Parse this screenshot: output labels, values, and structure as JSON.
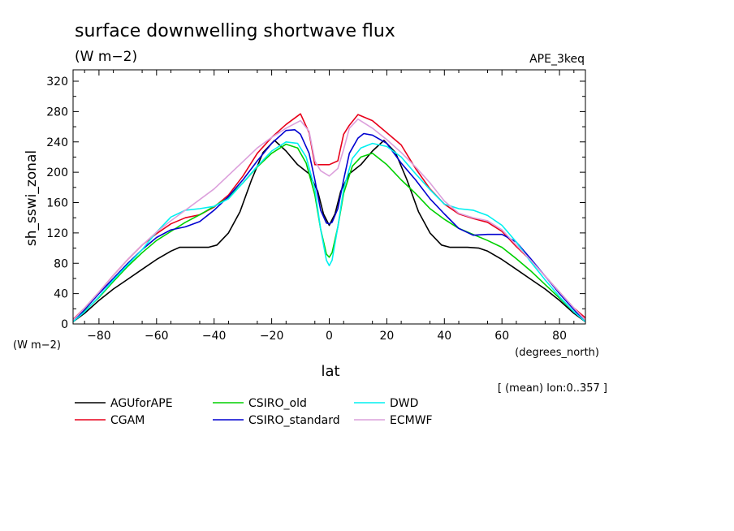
{
  "chart_data": {
    "type": "line",
    "title": "surface downwelling shortwave flux",
    "units": "(W m−2)",
    "experiment": "APE_3keq",
    "ylabel": "sh_sswi_zonal",
    "y_units": "(W m−2)",
    "xlabel": "lat",
    "x_units": "(degrees_north)",
    "note": "[ (mean) lon:0..357 ]",
    "xlim": [
      -89,
      89
    ],
    "ylim": [
      0,
      335
    ],
    "xticks": [
      -80,
      -60,
      -40,
      -20,
      0,
      20,
      40,
      60,
      80
    ],
    "yticks": [
      0,
      40,
      80,
      120,
      160,
      200,
      240,
      280,
      320
    ],
    "xtick_labels": [
      "−80",
      "−60",
      "−40",
      "−20",
      "0",
      "20",
      "40",
      "60",
      "80"
    ],
    "ytick_labels": [
      "0",
      "40",
      "80",
      "120",
      "160",
      "200",
      "240",
      "280",
      "320"
    ],
    "grid": false,
    "legend_position": "bottom",
    "series": [
      {
        "name": "AGUforAPE",
        "color": "#000000",
        "x": [
          -89,
          -85,
          -80,
          -75,
          -70,
          -65,
          -60,
          -55,
          -52,
          -48,
          -45,
          -42,
          -39,
          -35,
          -31,
          -27,
          -23,
          -19,
          -15,
          -11,
          -7,
          -4,
          -2,
          0,
          2,
          4,
          7,
          11,
          15,
          19,
          23,
          27,
          31,
          35,
          39,
          42,
          45,
          48,
          52,
          55,
          60,
          65,
          70,
          75,
          80,
          85,
          89
        ],
        "y": [
          3,
          14,
          31,
          46,
          59,
          72,
          85,
          96,
          101,
          101,
          101,
          101,
          104,
          120,
          148,
          190,
          226,
          242,
          228,
          210,
          198,
          175,
          145,
          130,
          145,
          175,
          198,
          210,
          228,
          242,
          226,
          190,
          148,
          120,
          104,
          101,
          101,
          101,
          100,
          96,
          85,
          72,
          59,
          46,
          31,
          14,
          3
        ]
      },
      {
        "name": "CGAM",
        "color": "#e8001a",
        "x": [
          -89,
          -85,
          -80,
          -75,
          -70,
          -65,
          -60,
          -55,
          -50,
          -45,
          -40,
          -35,
          -30,
          -25,
          -20,
          -15,
          -10,
          -7,
          -5,
          -3,
          0,
          3,
          5,
          7,
          10,
          15,
          20,
          25,
          30,
          35,
          40,
          45,
          50,
          55,
          60,
          65,
          70,
          75,
          80,
          85,
          89
        ],
        "y": [
          6,
          21,
          42,
          64,
          85,
          104,
          119,
          132,
          140,
          144,
          154,
          170,
          195,
          225,
          246,
          263,
          277,
          252,
          210,
          210,
          210,
          215,
          250,
          262,
          276,
          268,
          252,
          236,
          205,
          178,
          158,
          145,
          139,
          134,
          122,
          102,
          84,
          63,
          42,
          21,
          8
        ]
      },
      {
        "name": "CSIRO_old",
        "color": "#00d000",
        "x": [
          -89,
          -85,
          -80,
          -75,
          -70,
          -65,
          -60,
          -55,
          -50,
          -45,
          -40,
          -35,
          -30,
          -25,
          -20,
          -15,
          -11,
          -8,
          -5,
          -3,
          -1,
          0,
          1,
          3,
          5,
          8,
          11,
          15,
          20,
          25,
          30,
          35,
          40,
          45,
          50,
          55,
          60,
          65,
          70,
          75,
          80,
          85,
          89
        ],
        "y": [
          3,
          17,
          35,
          56,
          76,
          94,
          110,
          122,
          134,
          144,
          155,
          167,
          186,
          207,
          225,
          237,
          232,
          212,
          170,
          125,
          92,
          88,
          94,
          128,
          172,
          208,
          220,
          225,
          210,
          190,
          172,
          152,
          138,
          126,
          118,
          110,
          101,
          86,
          70,
          52,
          34,
          16,
          4
        ]
      },
      {
        "name": "CSIRO_standard",
        "color": "#0000d0",
        "x": [
          -89,
          -85,
          -80,
          -75,
          -70,
          -65,
          -60,
          -55,
          -50,
          -45,
          -40,
          -35,
          -30,
          -25,
          -20,
          -15,
          -12,
          -10,
          -7,
          -5,
          -3,
          -1,
          0,
          1,
          3,
          5,
          7,
          10,
          12,
          15,
          20,
          25,
          30,
          35,
          40,
          45,
          50,
          55,
          60,
          65,
          70,
          75,
          80,
          85,
          89
        ],
        "y": [
          3,
          19,
          40,
          60,
          80,
          98,
          114,
          124,
          128,
          135,
          150,
          168,
          190,
          215,
          238,
          255,
          256,
          250,
          225,
          190,
          150,
          133,
          132,
          134,
          152,
          190,
          225,
          245,
          251,
          249,
          238,
          212,
          190,
          165,
          145,
          126,
          117,
          118,
          118,
          108,
          86,
          63,
          40,
          19,
          3
        ]
      },
      {
        "name": "DWD",
        "color": "#00f0f0",
        "x": [
          -89,
          -85,
          -80,
          -75,
          -70,
          -65,
          -60,
          -55,
          -50,
          -45,
          -40,
          -35,
          -30,
          -25,
          -20,
          -15,
          -11,
          -8,
          -5,
          -3,
          -1,
          0,
          1,
          3,
          5,
          8,
          11,
          15,
          20,
          25,
          30,
          35,
          40,
          45,
          50,
          55,
          60,
          65,
          70,
          75,
          80,
          85,
          89
        ],
        "y": [
          3,
          16,
          36,
          58,
          78,
          98,
          121,
          141,
          150,
          152,
          155,
          165,
          186,
          208,
          228,
          240,
          238,
          220,
          178,
          125,
          84,
          77,
          84,
          128,
          178,
          218,
          232,
          238,
          234,
          220,
          198,
          177,
          158,
          152,
          150,
          143,
          130,
          108,
          82,
          58,
          36,
          16,
          3
        ]
      },
      {
        "name": "ECMWF",
        "color": "#dca0dc",
        "x": [
          -89,
          -85,
          -80,
          -75,
          -70,
          -65,
          -60,
          -55,
          -50,
          -45,
          -40,
          -35,
          -30,
          -25,
          -20,
          -15,
          -10,
          -7,
          -5,
          -3,
          0,
          3,
          5,
          7,
          10,
          15,
          20,
          25,
          30,
          35,
          40,
          45,
          50,
          55,
          60,
          65,
          70,
          75,
          80,
          85,
          89
        ],
        "y": [
          5,
          21,
          42,
          64,
          85,
          104,
          121,
          136,
          150,
          164,
          178,
          196,
          214,
          232,
          246,
          258,
          268,
          254,
          215,
          202,
          195,
          205,
          230,
          258,
          270,
          258,
          243,
          226,
          207,
          186,
          162,
          146,
          140,
          136,
          124,
          104,
          84,
          63,
          42,
          21,
          5
        ]
      }
    ]
  }
}
